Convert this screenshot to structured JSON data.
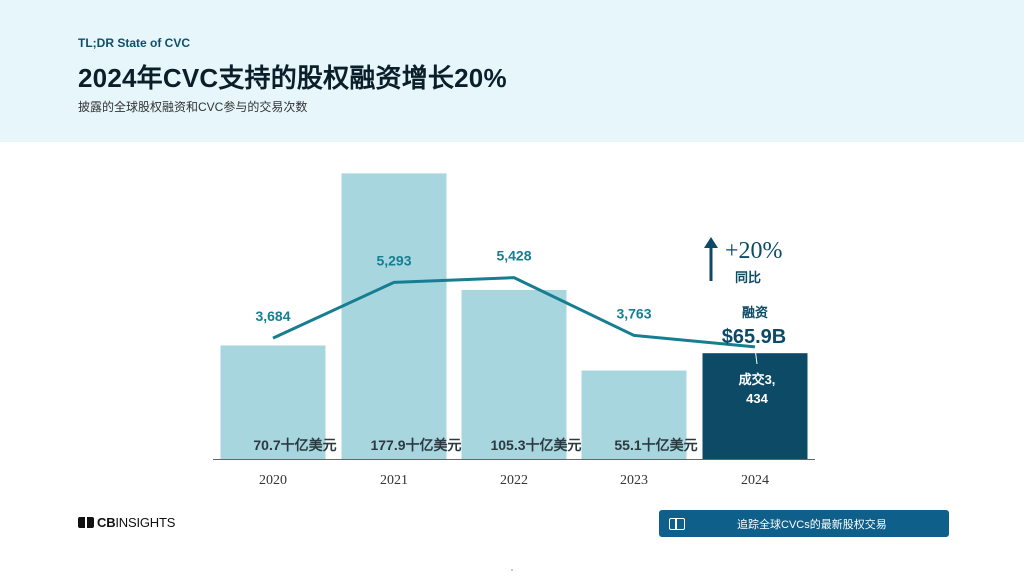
{
  "header": {
    "eyebrow": "TL;DR State of CVC",
    "title": "2024年CVC支持的股权融资增长20%",
    "subtitle": "披露的全球股权融资和CVC参与的交易次数"
  },
  "chart_data": {
    "type": "bar",
    "categories": [
      "2020",
      "2021",
      "2022",
      "2023",
      "2024"
    ],
    "bar_values": [
      70.7,
      177.9,
      105.3,
      55.1,
      65.9
    ],
    "bar_labels": [
      "70.7十亿美元",
      "177.9十亿美元",
      "105.3十亿美元",
      "55.1十亿美元"
    ],
    "line_values": [
      3684,
      5293,
      5428,
      3763,
      3434
    ],
    "line_labels": [
      "3,684",
      "5,293",
      "5,428",
      "3,763"
    ],
    "ylim": [
      0,
      180
    ],
    "line_ylim": [
      0,
      7000
    ],
    "highlight": {
      "change": "+20%",
      "change_caption": "同比",
      "funding_label": "融资",
      "funding_value": "$65.9B",
      "deals_line1": "成交3,",
      "deals_line2": "434"
    },
    "colors": {
      "bar": "#a8d6df",
      "bar_highlight": "#0d4a66",
      "line": "#167e90",
      "label": "#167e90"
    }
  },
  "footer": {
    "brand_bold": "CB",
    "brand_light": "INSIGHTS",
    "cta_label": "追踪全球CVCs的最新股权交易"
  }
}
